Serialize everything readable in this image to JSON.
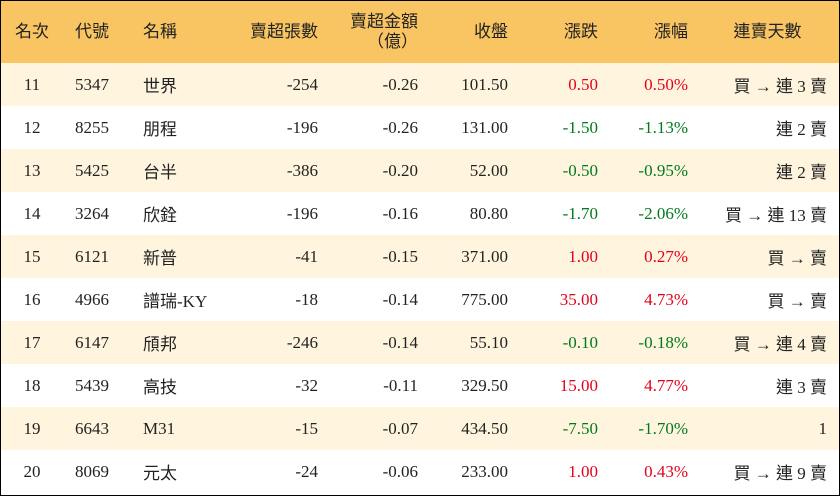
{
  "table": {
    "headers": [
      "名次",
      "代號",
      "名稱",
      "賣超張數",
      "賣超金額",
      "收盤",
      "漲跌",
      "漲幅",
      "連賣天數"
    ],
    "header_sub": "（億）",
    "rows": [
      [
        "11",
        "5347",
        "世界",
        "-254",
        "-0.26",
        "101.50",
        "0.50",
        "0.50%",
        "買 → 連 3 賣"
      ],
      [
        "12",
        "8255",
        "朋程",
        "-196",
        "-0.26",
        "131.00",
        "-1.50",
        "-1.13%",
        "連 2 賣"
      ],
      [
        "13",
        "5425",
        "台半",
        "-386",
        "-0.20",
        "52.00",
        "-0.50",
        "-0.95%",
        "連 2 賣"
      ],
      [
        "14",
        "3264",
        "欣銓",
        "-196",
        "-0.16",
        "80.80",
        "-1.70",
        "-2.06%",
        "買 → 連 13 賣"
      ],
      [
        "15",
        "6121",
        "新普",
        "-41",
        "-0.15",
        "371.00",
        "1.00",
        "0.27%",
        "買 → 賣"
      ],
      [
        "16",
        "4966",
        "譜瑞-KY",
        "-18",
        "-0.14",
        "775.00",
        "35.00",
        "4.73%",
        "買 → 賣"
      ],
      [
        "17",
        "6147",
        "頎邦",
        "-246",
        "-0.14",
        "55.10",
        "-0.10",
        "-0.18%",
        "買 → 連 4 賣"
      ],
      [
        "18",
        "5439",
        "高技",
        "-32",
        "-0.11",
        "329.50",
        "15.00",
        "4.77%",
        "連 3 賣"
      ],
      [
        "19",
        "6643",
        "M31",
        "-15",
        "-0.07",
        "434.50",
        "-7.50",
        "-1.70%",
        "1"
      ],
      [
        "20",
        "8069",
        "元太",
        "-24",
        "-0.06",
        "233.00",
        "1.00",
        "0.43%",
        "買 → 連 9 賣"
      ]
    ]
  }
}
